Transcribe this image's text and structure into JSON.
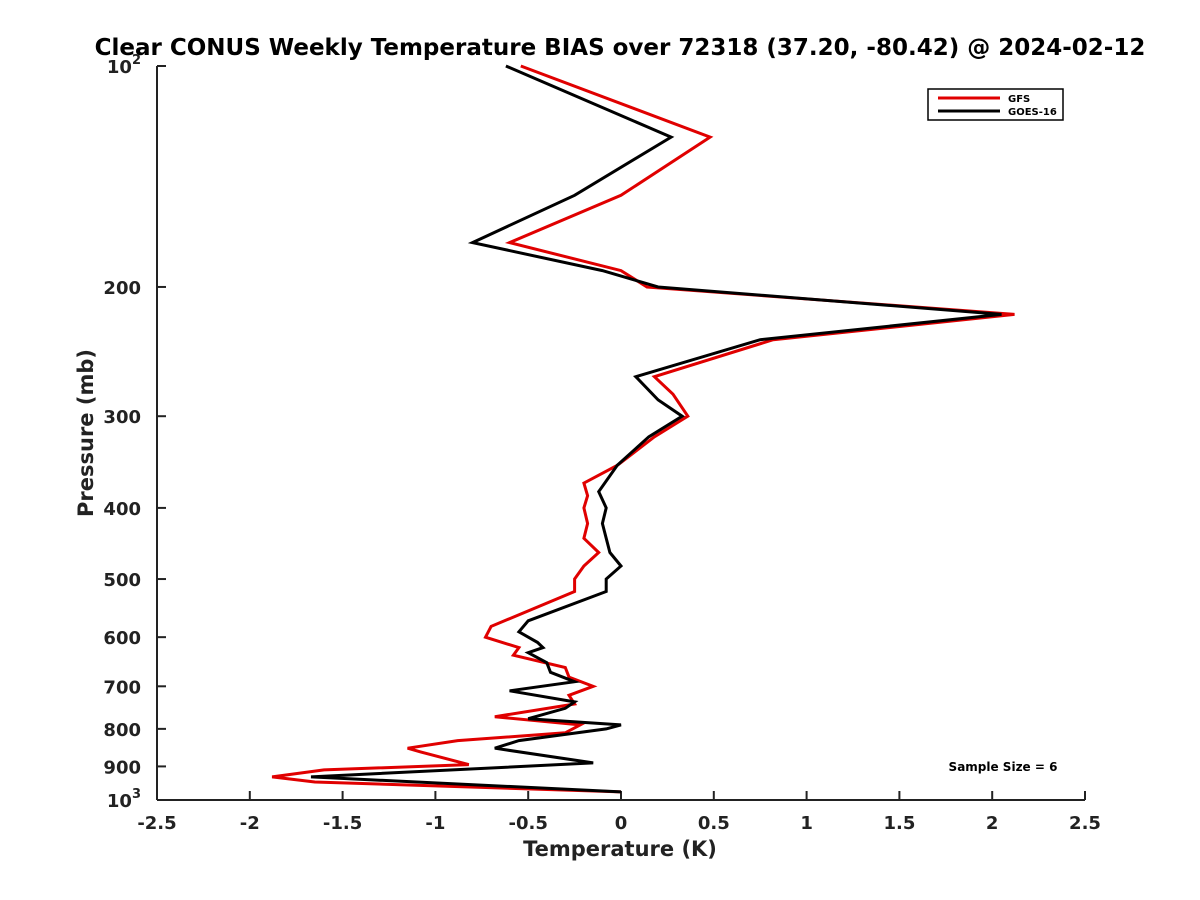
{
  "chart_data": {
    "type": "line",
    "title": "Clear CONUS Weekly Temperature BIAS over 72318 (37.20, -80.42) @ 2024-02-12",
    "xlabel": "Temperature (K)",
    "ylabel": "Pressure (mb)",
    "xlim": [
      -2.5,
      2.5
    ],
    "ylim": [
      100,
      1000
    ],
    "y_scale": "log",
    "y_reversed": true,
    "grid": false,
    "legend_position": "top-right",
    "xticks": [
      "-2.5",
      "-2",
      "-1.5",
      "-1",
      "-0.5",
      "0",
      "0.5",
      "1",
      "1.5",
      "2",
      "2.5"
    ],
    "xtick_values": [
      -2.5,
      -2,
      -1.5,
      -1,
      -0.5,
      0,
      0.5,
      1,
      1.5,
      2,
      2.5
    ],
    "yticks_plain": [
      "200",
      "300",
      "400",
      "500",
      "600",
      "700",
      "800",
      "900"
    ],
    "ytick_values": [
      200,
      300,
      400,
      500,
      600,
      700,
      800,
      900
    ],
    "ytick_top": {
      "base": "10",
      "exp": "2",
      "value": 100
    },
    "ytick_bottom": {
      "base": "10",
      "exp": "3",
      "value": 1000
    },
    "annotation": "Sample Size = 6",
    "series": [
      {
        "name": "GFS",
        "color": "#e00000",
        "points": [
          [
            -0.54,
            100
          ],
          [
            0.48,
            125
          ],
          [
            0.0,
            150
          ],
          [
            -0.6,
            174
          ],
          [
            0.0,
            190
          ],
          [
            0.14,
            200
          ],
          [
            2.12,
            218
          ],
          [
            0.82,
            236
          ],
          [
            0.18,
            265
          ],
          [
            0.28,
            280
          ],
          [
            0.36,
            300
          ],
          [
            0.18,
            320
          ],
          [
            -0.02,
            350
          ],
          [
            -0.2,
            370
          ],
          [
            -0.18,
            385
          ],
          [
            -0.2,
            400
          ],
          [
            -0.18,
            420
          ],
          [
            -0.2,
            440
          ],
          [
            -0.12,
            460
          ],
          [
            -0.2,
            480
          ],
          [
            -0.25,
            500
          ],
          [
            -0.25,
            520
          ],
          [
            -0.7,
            580
          ],
          [
            -0.73,
            600
          ],
          [
            -0.55,
            620
          ],
          [
            -0.58,
            635
          ],
          [
            -0.3,
            660
          ],
          [
            -0.28,
            680
          ],
          [
            -0.15,
            700
          ],
          [
            -0.28,
            720
          ],
          [
            -0.25,
            740
          ],
          [
            -0.68,
            770
          ],
          [
            -0.22,
            790
          ],
          [
            -0.3,
            810
          ],
          [
            -0.88,
            830
          ],
          [
            -1.15,
            850
          ],
          [
            -1.08,
            860
          ],
          [
            -0.82,
            895
          ],
          [
            -1.6,
            910
          ],
          [
            -1.88,
            930
          ],
          [
            -1.65,
            945
          ],
          [
            0.0,
            975
          ]
        ]
      },
      {
        "name": "GOES-16",
        "color": "#000000",
        "points": [
          [
            -0.62,
            100
          ],
          [
            0.27,
            125
          ],
          [
            -0.25,
            150
          ],
          [
            -0.8,
            174
          ],
          [
            -0.1,
            190
          ],
          [
            0.2,
            200
          ],
          [
            2.05,
            218
          ],
          [
            0.75,
            236
          ],
          [
            0.08,
            265
          ],
          [
            0.2,
            285
          ],
          [
            0.33,
            300
          ],
          [
            0.15,
            320
          ],
          [
            -0.02,
            350
          ],
          [
            -0.12,
            380
          ],
          [
            -0.08,
            400
          ],
          [
            -0.1,
            420
          ],
          [
            -0.08,
            440
          ],
          [
            -0.06,
            460
          ],
          [
            0.0,
            480
          ],
          [
            -0.08,
            500
          ],
          [
            -0.08,
            520
          ],
          [
            -0.5,
            570
          ],
          [
            -0.55,
            590
          ],
          [
            -0.45,
            610
          ],
          [
            -0.42,
            620
          ],
          [
            -0.5,
            630
          ],
          [
            -0.4,
            650
          ],
          [
            -0.38,
            670
          ],
          [
            -0.25,
            690
          ],
          [
            -0.6,
            710
          ],
          [
            -0.25,
            735
          ],
          [
            -0.3,
            750
          ],
          [
            -0.5,
            775
          ],
          [
            0.0,
            790
          ],
          [
            -0.08,
            800
          ],
          [
            -0.55,
            830
          ],
          [
            -0.68,
            850
          ],
          [
            -0.15,
            890
          ],
          [
            -1.67,
            930
          ],
          [
            0.0,
            975
          ]
        ]
      }
    ]
  }
}
